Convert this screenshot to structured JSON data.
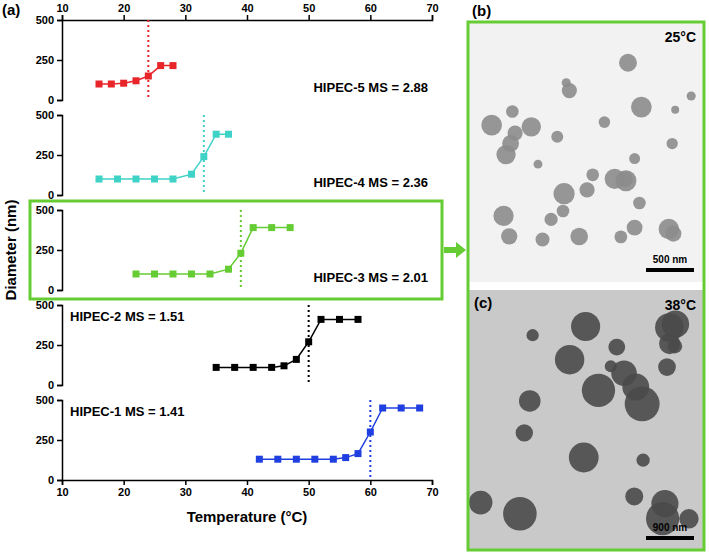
{
  "chart_data": [
    {
      "type": "line",
      "panel_label": "(a)",
      "annotation": "HIPEC-5  MS = 2.88",
      "x": [
        16,
        18,
        20,
        22,
        24,
        26,
        28
      ],
      "values": [
        100,
        100,
        105,
        120,
        150,
        215,
        215
      ],
      "color": "#e8262a",
      "marker": "square",
      "line_style": "solid",
      "reference_line": {
        "value": 24,
        "line_style": "dotted"
      },
      "xlim": [
        10,
        70
      ],
      "xticks": [
        10,
        20,
        30,
        40,
        50,
        60,
        70
      ],
      "ylim": [
        0,
        500
      ],
      "yticks": [
        0,
        250,
        500
      ]
    },
    {
      "type": "line",
      "annotation": "HIPEC-4  MS = 2.36",
      "x": [
        16,
        19,
        22,
        25,
        28,
        31,
        33,
        35,
        37
      ],
      "values": [
        100,
        100,
        100,
        100,
        100,
        130,
        240,
        380,
        380
      ],
      "color": "#3fd2c7",
      "marker": "square",
      "line_style": "solid",
      "reference_line": {
        "value": 33,
        "line_style": "dotted"
      },
      "xlim": [
        10,
        70
      ],
      "xticks": [
        10,
        20,
        30,
        40,
        50,
        60,
        70
      ],
      "ylim": [
        0,
        500
      ],
      "yticks": [
        0,
        250,
        500
      ],
      "tick_labels": "y"
    },
    {
      "type": "line",
      "annotation": "HIPEC-3  MS = 2.01",
      "y_label": "Diameter (nm)",
      "x": [
        22,
        25,
        28,
        31,
        34,
        37,
        39,
        41,
        44,
        47
      ],
      "values": [
        100,
        100,
        100,
        100,
        100,
        130,
        230,
        390,
        390,
        390
      ],
      "color": "#66cc33",
      "marker": "square",
      "line_style": "solid",
      "reference_line": {
        "value": 39,
        "line_style": "dotted"
      },
      "xlim": [
        10,
        70
      ],
      "xticks": [
        10,
        20,
        30,
        40,
        50,
        60,
        70
      ],
      "ylim": [
        0,
        500
      ],
      "yticks": [
        0,
        250,
        500
      ],
      "tick_labels": "y"
    },
    {
      "type": "line",
      "annotation": "HIPEC-2  MS = 1.51",
      "x": [
        35,
        38,
        41,
        44,
        46,
        48,
        50,
        52,
        55,
        58
      ],
      "values": [
        110,
        110,
        110,
        110,
        120,
        160,
        270,
        410,
        410,
        410
      ],
      "color": "#000000",
      "marker": "square",
      "line_style": "solid",
      "reference_line": {
        "value": 50,
        "line_style": "dotted"
      },
      "xlim": [
        10,
        70
      ],
      "xticks": [
        10,
        20,
        30,
        40,
        50,
        60,
        70
      ],
      "ylim": [
        0,
        500
      ],
      "yticks": [
        0,
        250,
        500
      ],
      "tick_labels": "y"
    },
    {
      "type": "line",
      "annotation": "HIPEC-1  MS = 1.41",
      "x_label": "Temperature (°C)",
      "x": [
        42,
        45,
        48,
        51,
        54,
        56,
        58,
        60,
        62,
        65,
        68
      ],
      "values": [
        130,
        130,
        130,
        130,
        130,
        140,
        165,
        300,
        450,
        450,
        450
      ],
      "color": "#1f3fe0",
      "marker": "square",
      "line_style": "solid",
      "reference_line": {
        "value": 60,
        "line_style": "dotted"
      },
      "xlim": [
        10,
        70
      ],
      "xticks": [
        10,
        20,
        30,
        40,
        50,
        60,
        70
      ],
      "ylim": [
        0,
        500
      ],
      "yticks": [
        0,
        250,
        500
      ]
    }
  ],
  "images": [
    {
      "panel_label": "(b)",
      "text": "25°C",
      "scale_bar": "500 nm"
    },
    {
      "panel_label": "(c)",
      "text": "38°C",
      "scale_bar": "900 nm"
    }
  ]
}
